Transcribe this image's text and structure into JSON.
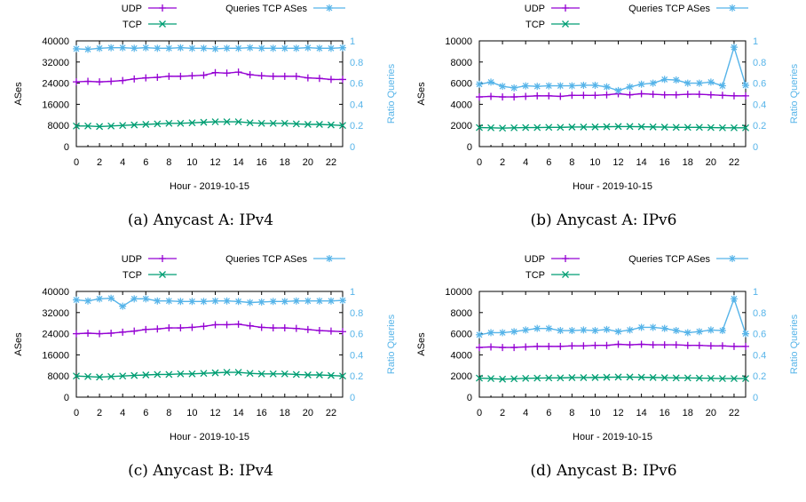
{
  "colors": {
    "udp": "#9400d3",
    "tcp": "#009e73",
    "ratio": "#56b4e9"
  },
  "chart_data": [
    {
      "type": "line",
      "caption": "(a) Anycast A: IPv4",
      "xlabel": "Hour - 2019-10-15",
      "ylabel": "ASes",
      "y2label": "Ratio Queries",
      "xlim": [
        0,
        23
      ],
      "ylim": [
        0,
        40000
      ],
      "y2lim": [
        0,
        1
      ],
      "xticks": [
        "0",
        "2",
        "4",
        "6",
        "8",
        "10",
        "12",
        "14",
        "16",
        "18",
        "20",
        "22"
      ],
      "yticks": [
        "0",
        "8000",
        "16000",
        "24000",
        "32000",
        "40000"
      ],
      "y2ticks": [
        "0",
        "0.2",
        "0.4",
        "0.6",
        "0.8",
        "1"
      ],
      "x": [
        0,
        1,
        2,
        3,
        4,
        5,
        6,
        7,
        8,
        9,
        10,
        11,
        12,
        13,
        14,
        15,
        16,
        17,
        18,
        19,
        20,
        21,
        22,
        23
      ],
      "series": [
        {
          "name": "UDP",
          "axis": "left",
          "values": [
            24500,
            24700,
            24500,
            24700,
            25000,
            25600,
            26000,
            26200,
            26600,
            26600,
            26800,
            27000,
            28000,
            27800,
            28200,
            27200,
            26800,
            26600,
            26600,
            26600,
            26000,
            25800,
            25400,
            25400
          ]
        },
        {
          "name": "TCP",
          "axis": "left",
          "values": [
            7800,
            7800,
            7600,
            7800,
            8000,
            8200,
            8400,
            8600,
            8800,
            8800,
            9000,
            9200,
            9400,
            9400,
            9400,
            9000,
            8800,
            8800,
            8800,
            8600,
            8400,
            8400,
            8200,
            8000
          ]
        },
        {
          "name": "Queries TCP ASes",
          "axis": "right",
          "values": [
            0.925,
            0.92,
            0.93,
            0.935,
            0.935,
            0.93,
            0.935,
            0.93,
            0.93,
            0.935,
            0.93,
            0.93,
            0.925,
            0.93,
            0.93,
            0.935,
            0.93,
            0.93,
            0.93,
            0.93,
            0.935,
            0.93,
            0.93,
            0.935
          ]
        }
      ]
    },
    {
      "type": "line",
      "caption": "(b) Anycast A: IPv6",
      "xlabel": "Hour - 2019-10-15",
      "ylabel": "ASes",
      "y2label": "Ratio Queries",
      "xlim": [
        0,
        23
      ],
      "ylim": [
        0,
        10000
      ],
      "y2lim": [
        0,
        1
      ],
      "xticks": [
        "0",
        "2",
        "4",
        "6",
        "8",
        "10",
        "12",
        "14",
        "16",
        "18",
        "20",
        "22"
      ],
      "yticks": [
        "0",
        "2000",
        "4000",
        "6000",
        "8000",
        "10000"
      ],
      "y2ticks": [
        "0",
        "0.2",
        "0.4",
        "0.6",
        "0.8",
        "1"
      ],
      "x": [
        0,
        1,
        2,
        3,
        4,
        5,
        6,
        7,
        8,
        9,
        10,
        11,
        12,
        13,
        14,
        15,
        16,
        17,
        18,
        19,
        20,
        21,
        22,
        23
      ],
      "series": [
        {
          "name": "UDP",
          "axis": "left",
          "values": [
            4700,
            4750,
            4700,
            4700,
            4750,
            4800,
            4800,
            4750,
            4850,
            4850,
            4850,
            4900,
            5000,
            4900,
            5000,
            4950,
            4900,
            4900,
            4950,
            4950,
            4900,
            4850,
            4800,
            4800
          ]
        },
        {
          "name": "TCP",
          "axis": "left",
          "values": [
            1800,
            1780,
            1750,
            1780,
            1800,
            1800,
            1820,
            1820,
            1850,
            1850,
            1860,
            1880,
            1900,
            1900,
            1880,
            1860,
            1840,
            1820,
            1820,
            1820,
            1800,
            1780,
            1780,
            1780
          ]
        },
        {
          "name": "Queries TCP ASes",
          "axis": "right",
          "values": [
            0.59,
            0.61,
            0.57,
            0.555,
            0.575,
            0.57,
            0.575,
            0.575,
            0.575,
            0.58,
            0.58,
            0.565,
            0.53,
            0.565,
            0.59,
            0.6,
            0.635,
            0.63,
            0.6,
            0.6,
            0.61,
            0.575,
            0.94,
            0.58
          ]
        }
      ]
    },
    {
      "type": "line",
      "caption": "(c) Anycast B: IPv4",
      "xlabel": "Hour - 2019-10-15",
      "ylabel": "ASes",
      "y2label": "Ratio Queries",
      "xlim": [
        0,
        23
      ],
      "ylim": [
        0,
        40000
      ],
      "y2lim": [
        0,
        1
      ],
      "xticks": [
        "0",
        "2",
        "4",
        "6",
        "8",
        "10",
        "12",
        "14",
        "16",
        "18",
        "20",
        "22"
      ],
      "yticks": [
        "0",
        "8000",
        "16000",
        "24000",
        "32000",
        "40000"
      ],
      "y2ticks": [
        "0",
        "0.2",
        "0.4",
        "0.6",
        "0.8",
        "1"
      ],
      "x": [
        0,
        1,
        2,
        3,
        4,
        5,
        6,
        7,
        8,
        9,
        10,
        11,
        12,
        13,
        14,
        15,
        16,
        17,
        18,
        19,
        20,
        21,
        22,
        23
      ],
      "series": [
        {
          "name": "UDP",
          "axis": "left",
          "values": [
            24000,
            24200,
            24000,
            24200,
            24600,
            25000,
            25600,
            25800,
            26200,
            26200,
            26400,
            26800,
            27400,
            27400,
            27600,
            27000,
            26400,
            26200,
            26200,
            26000,
            25600,
            25200,
            25000,
            24800
          ]
        },
        {
          "name": "TCP",
          "axis": "left",
          "values": [
            8000,
            7800,
            7600,
            7800,
            8000,
            8200,
            8400,
            8600,
            8600,
            8800,
            8800,
            9000,
            9200,
            9400,
            9400,
            9000,
            8800,
            8800,
            8800,
            8600,
            8400,
            8400,
            8200,
            8000
          ]
        },
        {
          "name": "Queries TCP ASes",
          "axis": "right",
          "values": [
            0.92,
            0.91,
            0.93,
            0.935,
            0.86,
            0.93,
            0.93,
            0.91,
            0.91,
            0.905,
            0.905,
            0.905,
            0.91,
            0.91,
            0.905,
            0.895,
            0.9,
            0.905,
            0.905,
            0.91,
            0.91,
            0.91,
            0.91,
            0.915
          ]
        }
      ]
    },
    {
      "type": "line",
      "caption": "(d) Anycast B: IPv6",
      "xlabel": "Hour - 2019-10-15",
      "ylabel": "ASes",
      "y2label": "Ratio Queries",
      "xlim": [
        0,
        23
      ],
      "ylim": [
        0,
        10000
      ],
      "y2lim": [
        0,
        1
      ],
      "xticks": [
        "0",
        "2",
        "4",
        "6",
        "8",
        "10",
        "12",
        "14",
        "16",
        "18",
        "20",
        "22"
      ],
      "yticks": [
        "0",
        "2000",
        "4000",
        "6000",
        "8000",
        "10000"
      ],
      "y2ticks": [
        "0",
        "0.2",
        "0.4",
        "0.6",
        "0.8",
        "1"
      ],
      "x": [
        0,
        1,
        2,
        3,
        4,
        5,
        6,
        7,
        8,
        9,
        10,
        11,
        12,
        13,
        14,
        15,
        16,
        17,
        18,
        19,
        20,
        21,
        22,
        23
      ],
      "series": [
        {
          "name": "UDP",
          "axis": "left",
          "values": [
            4700,
            4750,
            4700,
            4700,
            4750,
            4800,
            4800,
            4800,
            4850,
            4850,
            4900,
            4900,
            5000,
            4950,
            5000,
            4950,
            4950,
            4950,
            4900,
            4900,
            4850,
            4850,
            4800,
            4800
          ]
        },
        {
          "name": "TCP",
          "axis": "left",
          "values": [
            1800,
            1760,
            1700,
            1740,
            1780,
            1800,
            1820,
            1820,
            1850,
            1850,
            1860,
            1880,
            1900,
            1900,
            1880,
            1860,
            1840,
            1820,
            1820,
            1800,
            1780,
            1760,
            1760,
            1760
          ]
        },
        {
          "name": "Queries TCP ASes",
          "axis": "right",
          "values": [
            0.59,
            0.61,
            0.61,
            0.62,
            0.635,
            0.65,
            0.65,
            0.63,
            0.63,
            0.635,
            0.63,
            0.64,
            0.62,
            0.635,
            0.66,
            0.66,
            0.65,
            0.63,
            0.61,
            0.62,
            0.635,
            0.63,
            0.93,
            0.6
          ]
        }
      ]
    }
  ]
}
